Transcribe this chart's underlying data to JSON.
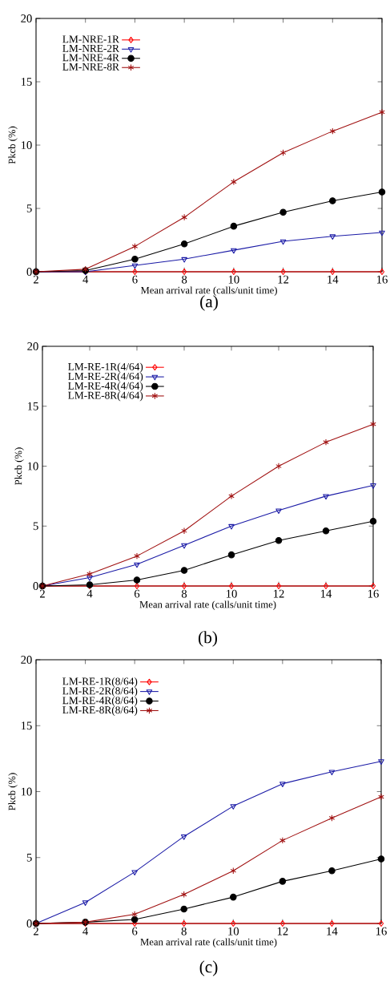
{
  "chart_data": [
    {
      "type": "line",
      "xlabel": "Mean arrival rate (calls/unit time)",
      "ylabel": "Pkcb (%)",
      "annotations": [
        "(a)"
      ],
      "x": [
        2,
        4,
        6,
        8,
        10,
        12,
        14,
        16
      ],
      "xlim": [
        2,
        16
      ],
      "xticks": [
        2,
        4,
        6,
        8,
        10,
        12,
        14,
        16
      ],
      "ylim": [
        0,
        20
      ],
      "yticks": [
        0,
        5,
        10,
        15,
        20
      ],
      "legend": "top left",
      "grid": false,
      "series": [
        {
          "name": "LM-NRE-1R",
          "color": "#ff0000",
          "marker": "diamond",
          "values": [
            0,
            0,
            0,
            0,
            0,
            0,
            0,
            0
          ]
        },
        {
          "name": "LM-NRE-2R",
          "color": "#1a1aa6",
          "marker": "triangle",
          "values": [
            0,
            0,
            0.5,
            1.0,
            1.7,
            2.4,
            2.8,
            3.1
          ]
        },
        {
          "name": "LM-NRE-4R",
          "color": "#000000",
          "marker": "circle",
          "values": [
            0,
            0.1,
            1.0,
            2.2,
            3.6,
            4.7,
            5.6,
            6.3
          ]
        },
        {
          "name": "LM-NRE-8R",
          "color": "#a01010",
          "marker": "cross",
          "values": [
            0,
            0.2,
            2.0,
            4.3,
            7.1,
            9.4,
            11.1,
            12.6
          ]
        }
      ]
    },
    {
      "type": "line",
      "xlabel": "Mean arrival rate (calls/unit time)",
      "ylabel": "Pkcb (%)",
      "annotations": [
        "(b)"
      ],
      "x": [
        2,
        4,
        6,
        8,
        10,
        12,
        14,
        16
      ],
      "xlim": [
        2,
        16
      ],
      "xticks": [
        2,
        4,
        6,
        8,
        10,
        12,
        14,
        16
      ],
      "ylim": [
        0,
        20
      ],
      "yticks": [
        0,
        5,
        10,
        15,
        20
      ],
      "legend": "top left",
      "grid": false,
      "series": [
        {
          "name": "LM-RE-1R(4/64)",
          "color": "#ff0000",
          "marker": "diamond",
          "values": [
            0,
            0,
            0,
            0,
            0,
            0,
            0,
            0
          ]
        },
        {
          "name": "LM-RE-2R(4/64)",
          "color": "#1a1aa6",
          "marker": "triangle",
          "values": [
            0,
            0.7,
            1.8,
            3.4,
            5.0,
            6.3,
            7.5,
            8.4
          ]
        },
        {
          "name": "LM-RE-4R(4/64)",
          "color": "#000000",
          "marker": "circle",
          "values": [
            0,
            0.1,
            0.5,
            1.3,
            2.6,
            3.8,
            4.6,
            5.4
          ]
        },
        {
          "name": "LM-RE-8R(4/64)",
          "color": "#a01010",
          "marker": "cross",
          "values": [
            0,
            1.0,
            2.5,
            4.6,
            7.5,
            10.0,
            12.0,
            13.5
          ]
        }
      ]
    },
    {
      "type": "line",
      "xlabel": "Mean arrival rate (calls/unit time)",
      "ylabel": "Pkcb (%)",
      "annotations": [
        "(c)"
      ],
      "x": [
        2,
        4,
        6,
        8,
        10,
        12,
        14,
        16
      ],
      "xlim": [
        2,
        16
      ],
      "xticks": [
        2,
        4,
        6,
        8,
        10,
        12,
        14,
        16
      ],
      "ylim": [
        0,
        20
      ],
      "yticks": [
        0,
        5,
        10,
        15,
        20
      ],
      "legend": "top left",
      "grid": false,
      "series": [
        {
          "name": "LM-RE-1R(8/64)",
          "color": "#ff0000",
          "marker": "diamond",
          "values": [
            0,
            0,
            0,
            0,
            0,
            0,
            0,
            0
          ]
        },
        {
          "name": "LM-RE-2R(8/64)",
          "color": "#1a1aa6",
          "marker": "triangle",
          "values": [
            0,
            1.6,
            3.9,
            6.6,
            8.9,
            10.6,
            11.5,
            12.3
          ]
        },
        {
          "name": "LM-RE-4R(8/64)",
          "color": "#000000",
          "marker": "circle",
          "values": [
            0,
            0.1,
            0.3,
            1.1,
            2.0,
            3.2,
            4.0,
            4.9
          ]
        },
        {
          "name": "LM-RE-8R(8/64)",
          "color": "#a01010",
          "marker": "cross",
          "values": [
            0,
            0.1,
            0.7,
            2.2,
            4.0,
            6.3,
            8.0,
            9.6
          ]
        }
      ]
    }
  ]
}
